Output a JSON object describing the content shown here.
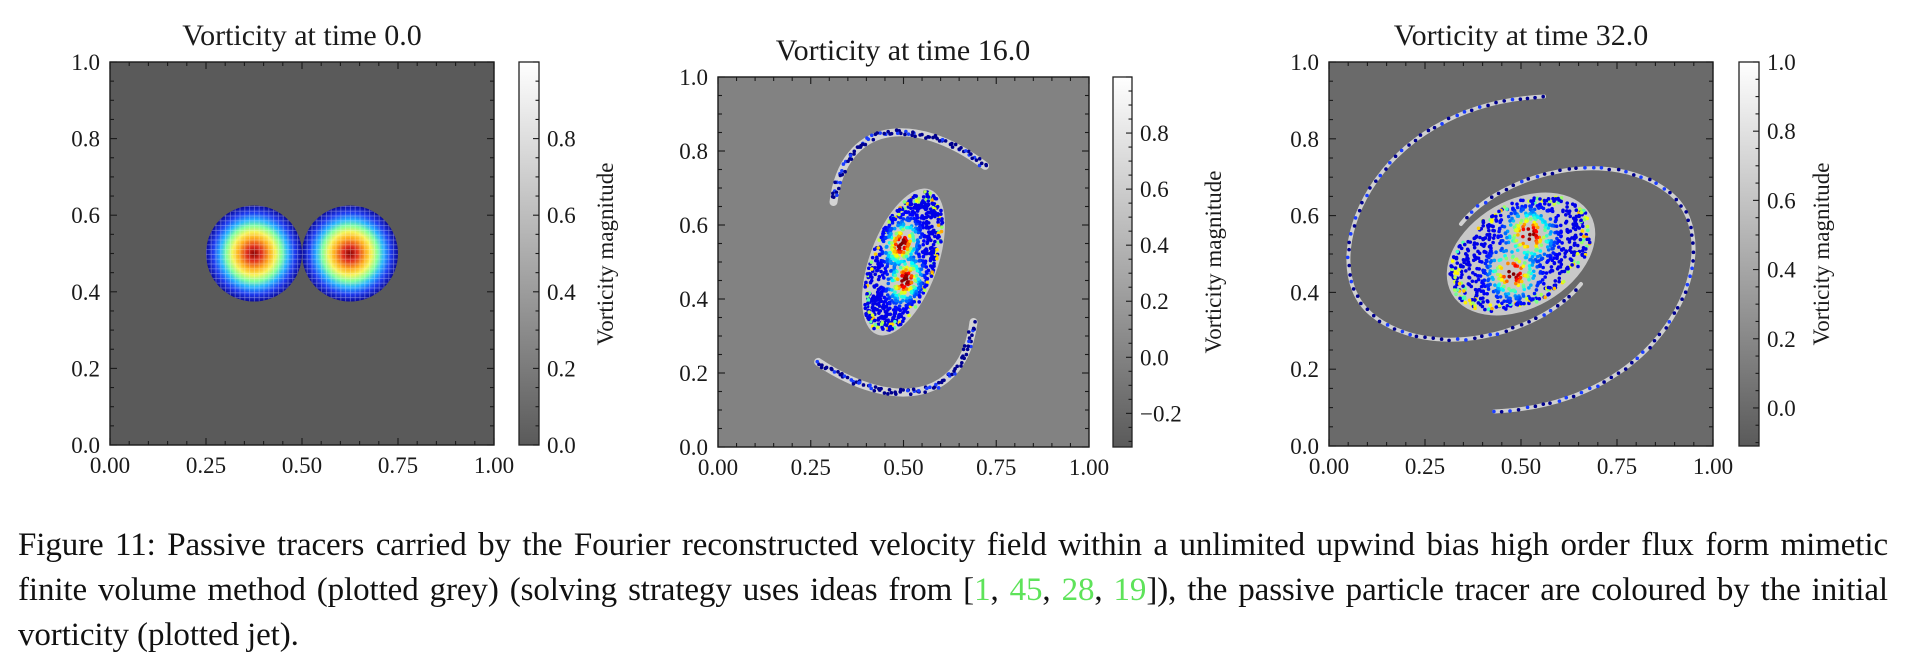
{
  "chart_data": [
    {
      "type": "heatmap",
      "subtype": "vorticity field with scatter tracers",
      "title": "Vorticity at time 0.0",
      "time": 0.0,
      "xlabel": "",
      "ylabel": "",
      "xlim": [
        0.0,
        1.0
      ],
      "ylim": [
        0.0,
        1.0
      ],
      "xticks": [
        "0.00",
        "0.25",
        "0.50",
        "0.75",
        "1.00"
      ],
      "yticks": [
        "0.0",
        "0.2",
        "0.4",
        "0.6",
        "0.8",
        "1.0"
      ],
      "colorbar": {
        "label": "Vorticity magnitude",
        "range": [
          0.0,
          1.0
        ],
        "ticks": [
          "0.0",
          "0.2",
          "0.4",
          "0.6",
          "0.8"
        ],
        "colormap": "greys"
      },
      "background_vorticity": 0.0,
      "structure": "two_disks",
      "vortices": [
        {
          "cx": 0.375,
          "cy": 0.5,
          "radius": 0.125
        },
        {
          "cx": 0.625,
          "cy": 0.5,
          "radius": 0.125
        }
      ],
      "tracer_colormap": "jet"
    },
    {
      "type": "heatmap",
      "subtype": "vorticity field with scatter tracers",
      "title": "Vorticity at time 16.0",
      "time": 16.0,
      "xlabel": "",
      "ylabel": "",
      "xlim": [
        0.0,
        1.0
      ],
      "ylim": [
        0.0,
        1.0
      ],
      "xticks": [
        "0.00",
        "0.25",
        "0.50",
        "0.75",
        "1.00"
      ],
      "yticks": [
        "0.0",
        "0.2",
        "0.4",
        "0.6",
        "0.8",
        "1.0"
      ],
      "colorbar": {
        "label": "Vorticity magnitude",
        "range": [
          -0.32,
          1.0
        ],
        "ticks": [
          "−0.2",
          "0.0",
          "0.2",
          "0.4",
          "0.6",
          "0.8"
        ],
        "colormap": "greys"
      },
      "background_vorticity": 0.0,
      "structure": "merging_s",
      "core": {
        "cx": 0.5,
        "cy": 0.5,
        "semi_major": 0.2,
        "semi_minor": 0.085,
        "angle_deg": 70
      },
      "filament_ends": [
        [
          0.72,
          0.76
        ],
        [
          0.27,
          0.23
        ]
      ],
      "tracer_colormap": "jet"
    },
    {
      "type": "heatmap",
      "subtype": "vorticity field with scatter tracers",
      "title": "Vorticity at time 32.0",
      "time": 32.0,
      "xlabel": "",
      "ylabel": "",
      "xlim": [
        0.0,
        1.0
      ],
      "ylim": [
        0.0,
        1.0
      ],
      "xticks": [
        "0.00",
        "0.25",
        "0.50",
        "0.75",
        "1.00"
      ],
      "yticks": [
        "0.0",
        "0.2",
        "0.4",
        "0.6",
        "0.8",
        "1.0"
      ],
      "colorbar": {
        "label": "Vorticity magnitude",
        "range": [
          -0.11,
          1.0
        ],
        "ticks": [
          "0.0",
          "0.2",
          "0.4",
          "0.6",
          "0.8",
          "1.0"
        ],
        "colormap": "greys"
      },
      "background_vorticity": 0.0,
      "structure": "spiral",
      "core": {
        "cx": 0.5,
        "cy": 0.5,
        "semi_major": 0.2,
        "semi_minor": 0.13,
        "angle_deg": 30
      },
      "filament_ends": [
        [
          0.56,
          0.91
        ],
        [
          0.43,
          0.09
        ]
      ],
      "tracer_colormap": "jet"
    }
  ],
  "caption": {
    "label": "Figure 11:",
    "text_before": " Passive tracers carried by the Fourier reconstructed velocity field within a unlimited upwind bias high order flux form mimetic finite volume method (plotted grey) (solving strategy uses ideas from [",
    "citations": [
      "1",
      "45",
      "28",
      "19"
    ],
    "text_after": "]), the passive particle tracer are coloured by the initial vorticity (plotted jet).",
    "citation_color": "#5ee35a"
  }
}
